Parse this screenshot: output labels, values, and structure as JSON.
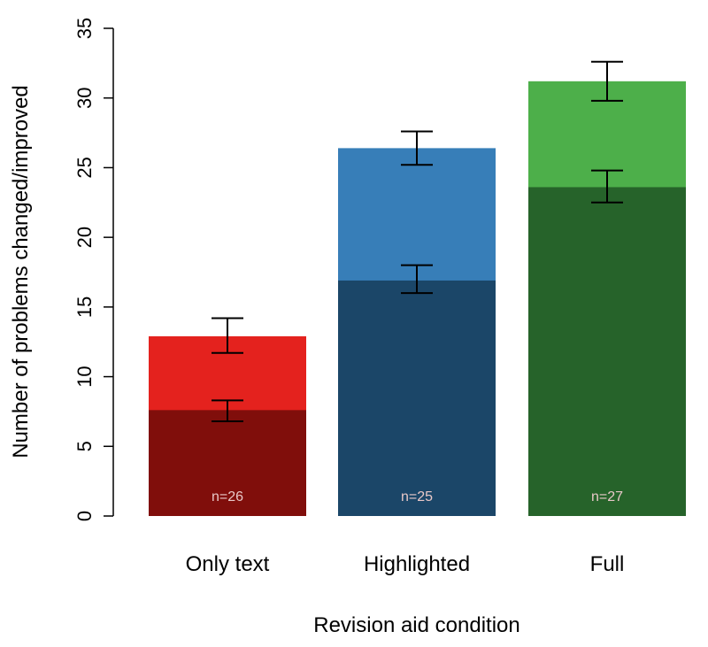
{
  "chart_data": {
    "type": "bar",
    "stacked_overlay": true,
    "xlabel": "Revision aid condition",
    "ylabel": "Number of problems changed/improved",
    "ylim": [
      0,
      35
    ],
    "yticks": [
      "0",
      "5",
      "10",
      "15",
      "20",
      "25",
      "30",
      "35"
    ],
    "grid": false,
    "categories": [
      "Only text",
      "Highlighted",
      "Full"
    ],
    "series": [
      {
        "name": "changed",
        "values": [
          12.9,
          26.4,
          31.2
        ],
        "error_low": [
          11.7,
          25.2,
          29.8
        ],
        "error_high": [
          14.2,
          27.6,
          32.6
        ],
        "colors": [
          "#e4221e",
          "#377eb8",
          "#4daf4a"
        ]
      },
      {
        "name": "improved",
        "values": [
          7.6,
          16.9,
          23.6
        ],
        "error_low": [
          6.8,
          16.0,
          22.5
        ],
        "error_high": [
          8.3,
          18.0,
          24.8
        ],
        "colors": [
          "#800e0b",
          "#1b4668",
          "#26632a"
        ]
      }
    ],
    "bar_labels": [
      "n=26",
      "n=25",
      "n=27"
    ]
  }
}
